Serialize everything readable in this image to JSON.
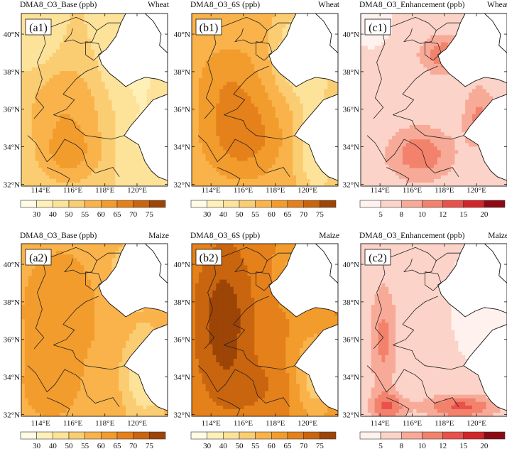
{
  "panels": [
    {
      "tag": "(a1)",
      "title": "DMA8_O3_Base (ppb)",
      "crop": "Wheat",
      "scale": "o3",
      "palette": "o3",
      "field": "a1"
    },
    {
      "tag": "(b1)",
      "title": "DMA8_O3_6S (ppb)",
      "crop": "Wheat",
      "scale": "o3",
      "palette": "o3",
      "field": "b1"
    },
    {
      "tag": "(c1)",
      "title": "DMA8_O3_Enhancement (ppb)",
      "crop": "Wheat",
      "scale": "enh",
      "palette": "enh",
      "field": "c1"
    },
    {
      "tag": "(a2)",
      "title": "DMA8_O3_Base (ppb)",
      "crop": "Maize",
      "scale": "o3",
      "palette": "o3",
      "field": "a2"
    },
    {
      "tag": "(b2)",
      "title": "DMA8_O3_6S (ppb)",
      "crop": "Maize",
      "scale": "o3",
      "palette": "o3",
      "field": "b2"
    },
    {
      "tag": "(c2)",
      "title": "DMA8_O3_Enhancement (ppb)",
      "crop": "Maize",
      "scale": "enh",
      "palette": "enh",
      "field": "c2"
    }
  ],
  "lon_ticks": [
    "114°E",
    "116°E",
    "118°E",
    "120°E"
  ],
  "lat_ticks": [
    "40°N",
    "38°N",
    "36°N",
    "34°N",
    "32°N"
  ],
  "colorbars": {
    "o3": {
      "labels": [
        "30",
        "40",
        "50",
        "55",
        "60",
        "65",
        "70",
        "75"
      ],
      "colors": [
        "#fffbe6",
        "#fff0b8",
        "#fde29a",
        "#fbcd72",
        "#f9b34a",
        "#f29c2d",
        "#e5811a",
        "#c9650e",
        "#9c4507"
      ]
    },
    "enh": {
      "labels": [
        "5",
        "8",
        "10",
        "12",
        "15",
        "20"
      ],
      "colors": [
        "#fff1ee",
        "#fcd3c8",
        "#f8aa98",
        "#f3826c",
        "#e9514a",
        "#d2252a",
        "#8c0a13"
      ]
    }
  },
  "map_extent": {
    "lon": [
      112.8,
      121.9
    ],
    "lat": [
      31.9,
      41.1
    ]
  }
}
